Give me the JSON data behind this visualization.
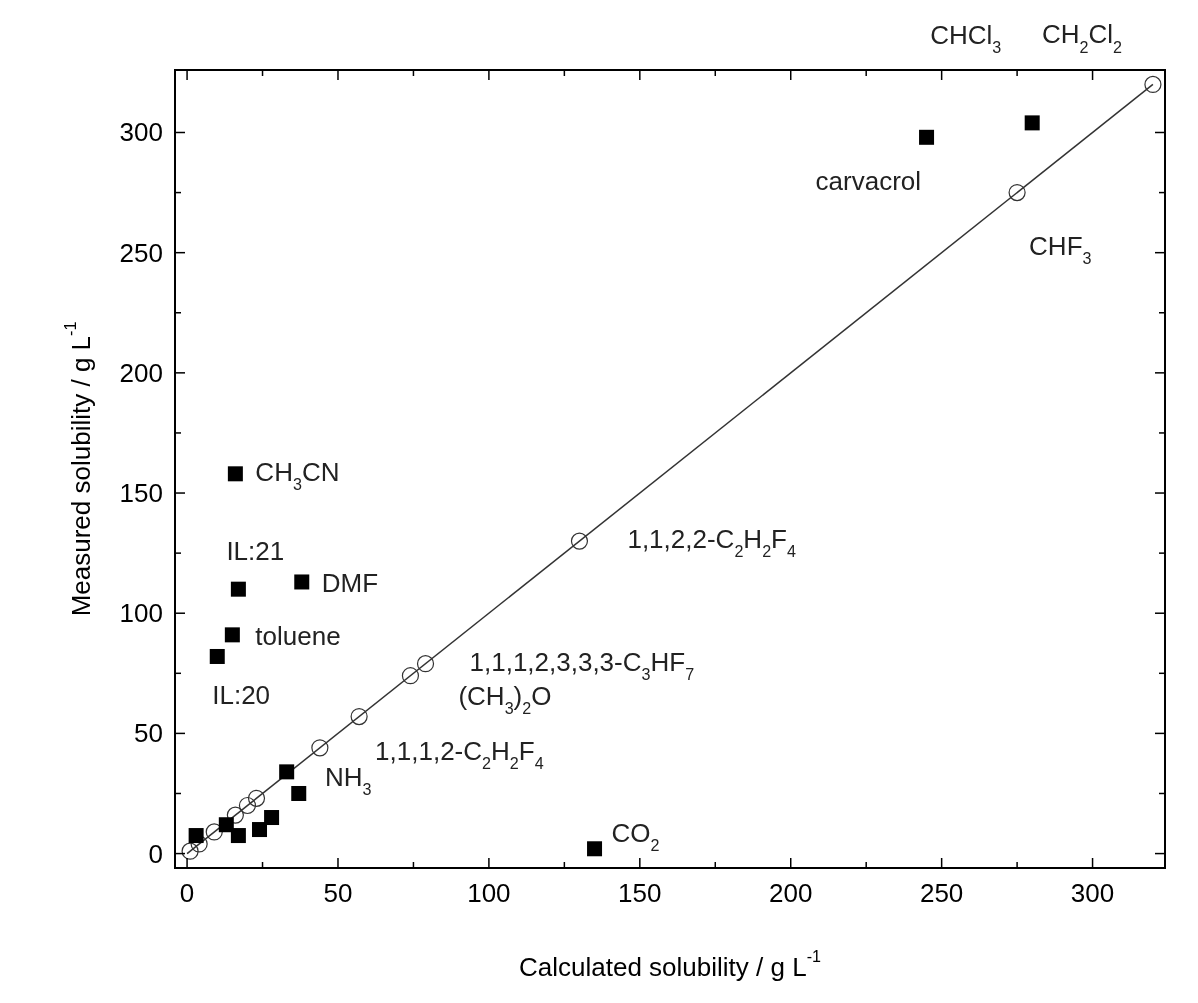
{
  "chart_data": {
    "type": "scatter",
    "xlabel": "Calculated solubility / g L$^{-1}$",
    "ylabel": "Measured solubility / g L$^{-1}$",
    "xlim": [
      -4,
      324
    ],
    "ylim": [
      -6,
      326
    ],
    "xticks": [
      0,
      {
        "value": 25,
        "label": null
      },
      50,
      {
        "value": 75,
        "label": null
      },
      100,
      {
        "value": 125,
        "label": null
      },
      150,
      {
        "value": 175,
        "label": null
      },
      200,
      {
        "value": 225,
        "label": null
      },
      250,
      {
        "value": 275,
        "label": null
      },
      300
    ],
    "yticks": [
      0,
      {
        "value": 25,
        "label": null
      },
      50,
      {
        "value": 75,
        "label": null
      },
      100,
      {
        "value": 125,
        "label": null
      },
      150,
      {
        "value": 175,
        "label": null
      },
      200,
      {
        "value": 225,
        "label": null
      },
      250,
      {
        "value": 275,
        "label": null
      },
      300
    ],
    "grid": false,
    "series": [
      {
        "type": "line",
        "color": "#333333",
        "marker": "none",
        "line_style": "solid",
        "x": [
          0,
          320
        ],
        "values": [
          0,
          320
        ]
      },
      {
        "type": "scatter",
        "color": "#333333",
        "marker": "circle",
        "x": [
          320,
          275,
          130,
          79,
          74,
          57,
          44,
          23,
          20,
          16,
          9,
          4,
          1
        ],
        "values": [
          320,
          275,
          130,
          79,
          74,
          57,
          44,
          23,
          20,
          16,
          9,
          4,
          1
        ]
      },
      {
        "type": "scatter",
        "color": "#000000",
        "marker": "square",
        "x": [
          245,
          280,
          16,
          17,
          38,
          15,
          10,
          135,
          33,
          37,
          28,
          24,
          17,
          13,
          3
        ],
        "values": [
          298,
          304,
          158,
          110,
          113,
          91,
          82,
          2,
          34,
          25,
          15,
          10,
          7.5,
          12,
          7.5
        ]
      }
    ],
    "annotations": [
      {
        "text": "CHCl$_{3}$",
        "x": 280,
        "y": 304
      },
      {
        "text": "CH$_{2}$Cl$_{2}$",
        "x": 320,
        "y": 320
      },
      {
        "text": "carvacrol",
        "x": 245,
        "y": 298
      },
      {
        "text": "CHF$_{3}$",
        "x": 275,
        "y": 275
      },
      {
        "text": "CH$_{3}$CN",
        "x": 16,
        "y": 158
      },
      {
        "text": "IL:21",
        "x": 17,
        "y": 110
      },
      {
        "text": "DMF",
        "x": 38,
        "y": 113
      },
      {
        "text": "toluene",
        "x": 15,
        "y": 91
      },
      {
        "text": "IL:20",
        "x": 10,
        "y": 82
      },
      {
        "text": "1,1,2,2-C$_{2}$H$_{2}$F$_{4}$",
        "x": 130,
        "y": 130
      },
      {
        "text": "1,1,1,2,3,3,3-C$_{3}$HF$_{7}$",
        "x": 79,
        "y": 79
      },
      {
        "text": "(CH$_{3}$)$_{2}$O",
        "x": 74,
        "y": 74
      },
      {
        "text": "1,1,1,2-C$_{2}$H$_{2}$F$_{4}$",
        "x": 57,
        "y": 57
      },
      {
        "text": "NH$_{3}$",
        "x": 44,
        "y": 44
      },
      {
        "text": "CO$_{2}$",
        "x": 135,
        "y": 2
      }
    ]
  }
}
